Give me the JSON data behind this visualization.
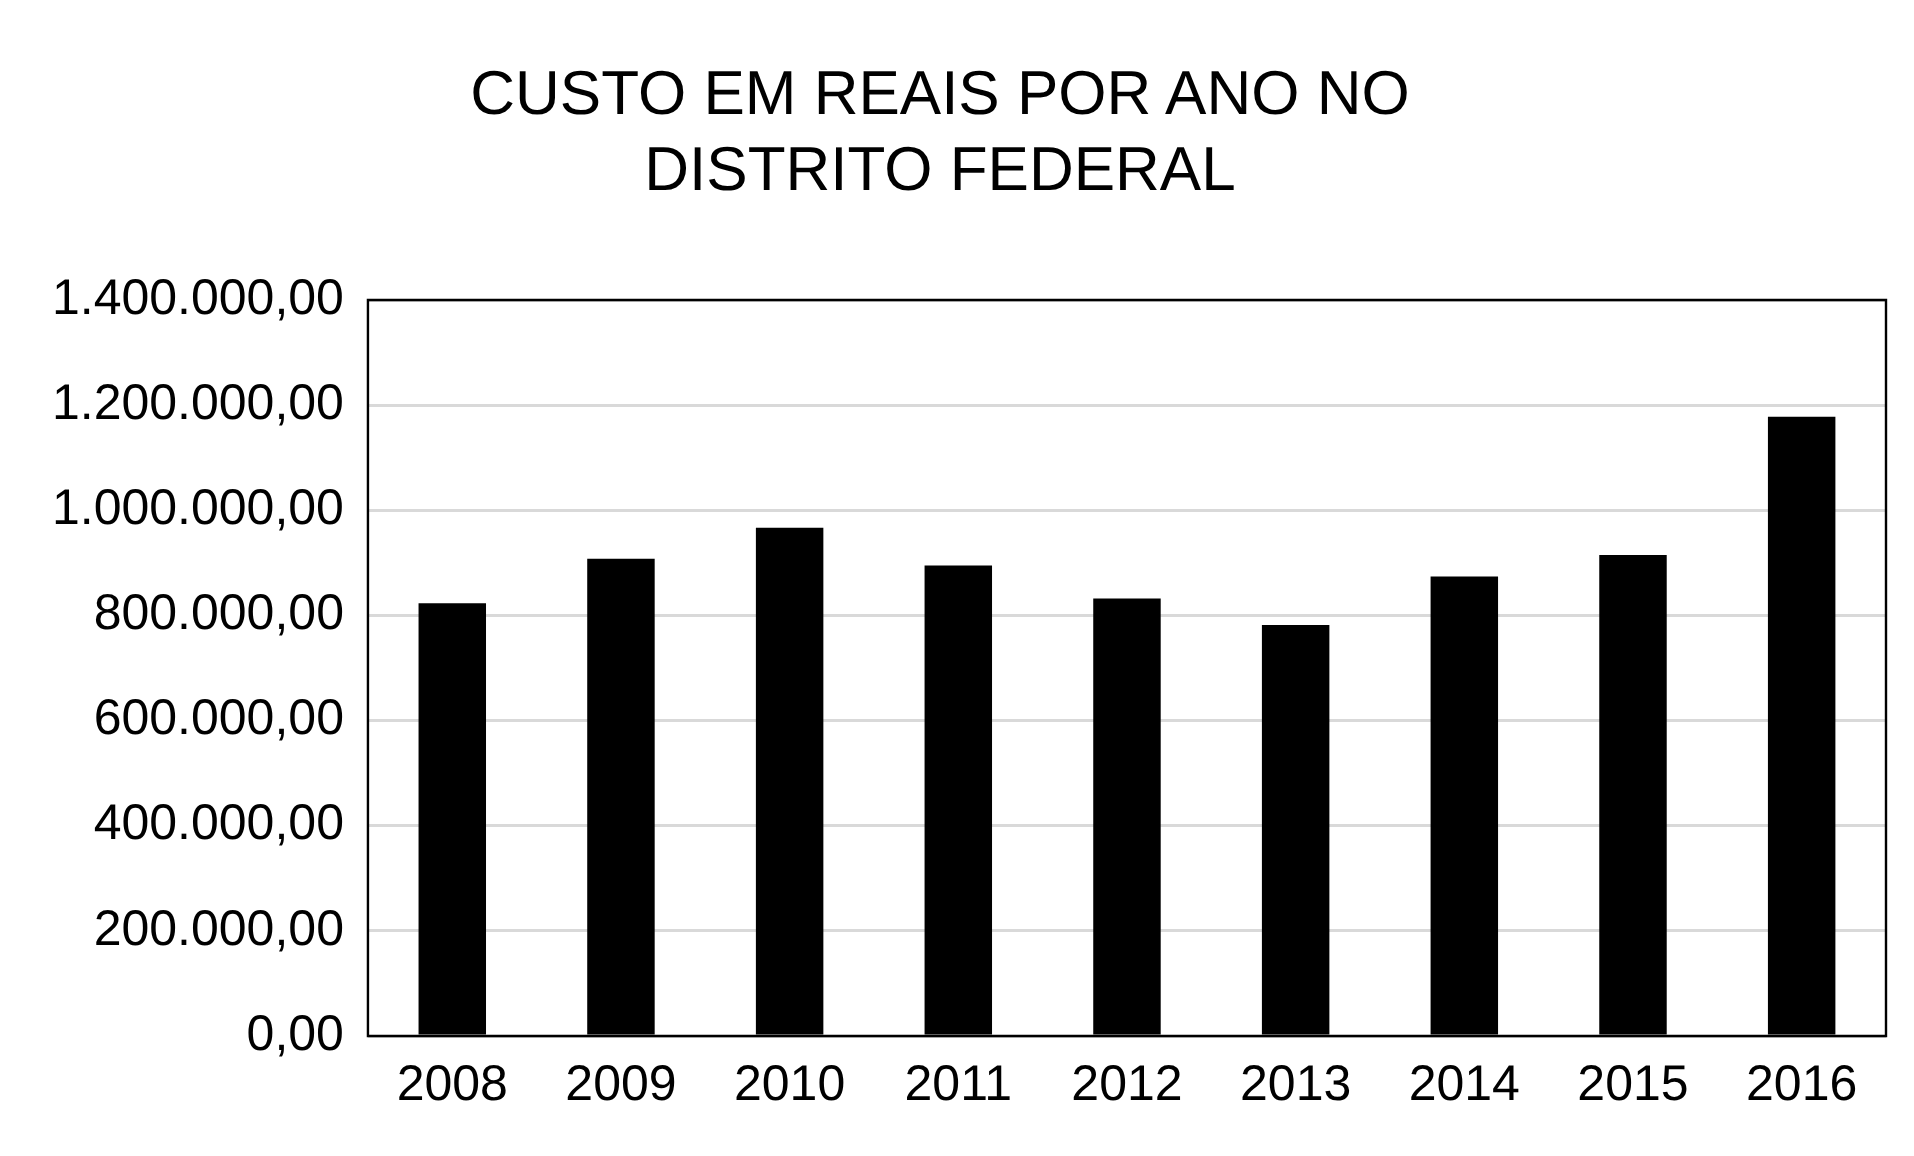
{
  "chart_data": {
    "type": "bar",
    "title": "CUSTO EM REAIS POR ANO NO DISTRITO FEDERAL",
    "categories": [
      "2008",
      "2009",
      "2010",
      "2011",
      "2012",
      "2013",
      "2014",
      "2015",
      "2016"
    ],
    "values": [
      823000,
      908000,
      967000,
      895000,
      832000,
      782000,
      874000,
      915000,
      1178000
    ],
    "color": "#000000",
    "ylim": [
      0,
      1400000
    ],
    "yticks": [
      {
        "value": 0,
        "label": "0,00"
      },
      {
        "value": 200000,
        "label": "200.000,00"
      },
      {
        "value": 400000,
        "label": "400.000,00"
      },
      {
        "value": 600000,
        "label": "600.000,00"
      },
      {
        "value": 800000,
        "label": "800.000,00"
      },
      {
        "value": 1000000,
        "label": "1.000.000,00"
      },
      {
        "value": 1200000,
        "label": "1.200.000,00"
      },
      {
        "value": 1400000,
        "label": "1.400.000,00"
      }
    ],
    "grid": "y"
  }
}
